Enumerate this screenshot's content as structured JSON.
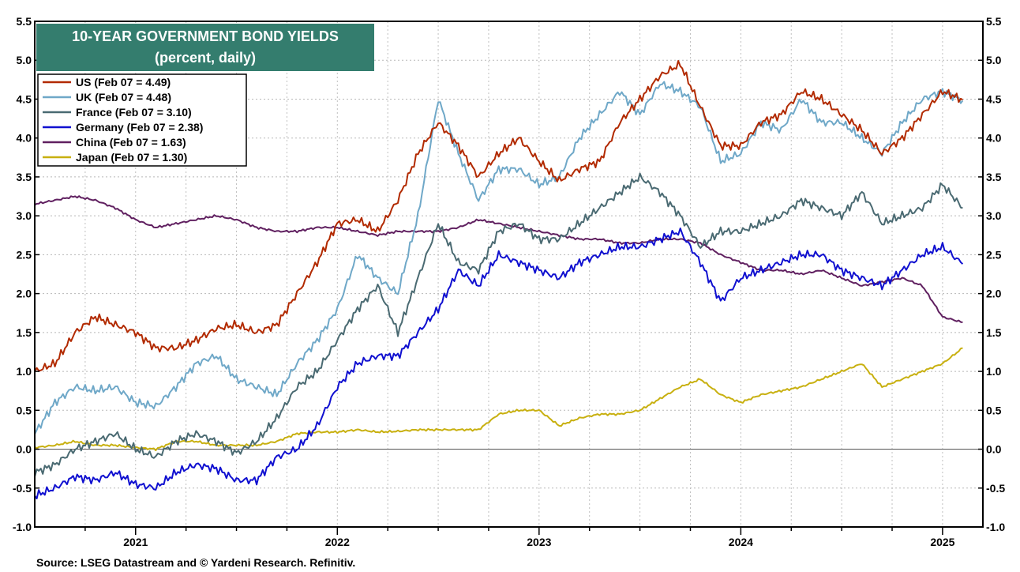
{
  "chart_data": {
    "type": "line",
    "title": "10-YEAR GOVERNMENT BOND YIELDS",
    "subtitle": "(percent, daily)",
    "xlabel": "",
    "ylabel": "",
    "ylim": [
      -1.0,
      5.5
    ],
    "xlim": [
      2020.5,
      2025.2
    ],
    "y_ticks": [
      "5.5",
      "5.0",
      "4.5",
      "4.0",
      "3.5",
      "3.0",
      "2.5",
      "2.0",
      "1.5",
      "1.0",
      "0.5",
      "0.0",
      "-0.5",
      "-1.0"
    ],
    "x_tick_labels": [
      "2021",
      "2022",
      "2023",
      "2024",
      "2025"
    ],
    "grid": true,
    "legend_position": "top-left",
    "source": "Source: LSEG Datastream and © Yardeni Research. Refinitiv.",
    "series": [
      {
        "name": "US",
        "label": "US (Feb 07 = 4.49)",
        "color": "#b22a00",
        "x": [
          2020.5,
          2020.6,
          2020.7,
          2020.8,
          2020.9,
          2021.0,
          2021.1,
          2021.2,
          2021.3,
          2021.4,
          2021.5,
          2021.6,
          2021.7,
          2021.8,
          2021.9,
          2022.0,
          2022.1,
          2022.2,
          2022.3,
          2022.4,
          2022.5,
          2022.6,
          2022.7,
          2022.8,
          2022.9,
          2023.0,
          2023.1,
          2023.2,
          2023.3,
          2023.4,
          2023.5,
          2023.6,
          2023.7,
          2023.8,
          2023.9,
          2024.0,
          2024.1,
          2024.2,
          2024.3,
          2024.4,
          2024.5,
          2024.6,
          2024.7,
          2024.8,
          2024.9,
          2025.0,
          2025.1
        ],
        "values": [
          1.0,
          1.1,
          1.5,
          1.7,
          1.6,
          1.5,
          1.3,
          1.3,
          1.4,
          1.55,
          1.6,
          1.5,
          1.6,
          2.0,
          2.4,
          2.9,
          2.95,
          2.8,
          3.2,
          3.8,
          4.2,
          3.9,
          3.5,
          3.8,
          4.0,
          3.7,
          3.45,
          3.6,
          3.7,
          4.2,
          4.5,
          4.8,
          4.95,
          4.4,
          3.9,
          3.9,
          4.2,
          4.3,
          4.6,
          4.5,
          4.3,
          4.1,
          3.8,
          4.0,
          4.3,
          4.6,
          4.49
        ]
      },
      {
        "name": "UK",
        "label": "UK (Feb 07 = 4.48)",
        "color": "#6fa8c8",
        "x": [
          2020.5,
          2020.6,
          2020.7,
          2020.8,
          2020.9,
          2021.0,
          2021.1,
          2021.2,
          2021.3,
          2021.4,
          2021.5,
          2021.6,
          2021.7,
          2021.8,
          2021.9,
          2022.0,
          2022.1,
          2022.2,
          2022.3,
          2022.4,
          2022.5,
          2022.6,
          2022.7,
          2022.8,
          2022.9,
          2023.0,
          2023.1,
          2023.2,
          2023.3,
          2023.4,
          2023.5,
          2023.6,
          2023.7,
          2023.8,
          2023.9,
          2024.0,
          2024.1,
          2024.2,
          2024.3,
          2024.4,
          2024.5,
          2024.6,
          2024.7,
          2024.8,
          2024.9,
          2025.0,
          2025.1
        ],
        "values": [
          0.2,
          0.6,
          0.8,
          0.75,
          0.8,
          0.6,
          0.55,
          0.8,
          1.1,
          1.2,
          0.9,
          0.8,
          0.7,
          1.1,
          1.4,
          1.8,
          2.5,
          2.2,
          2.0,
          3.0,
          4.5,
          3.8,
          3.2,
          3.6,
          3.6,
          3.4,
          3.5,
          4.0,
          4.3,
          4.6,
          4.3,
          4.7,
          4.6,
          4.4,
          3.7,
          3.8,
          4.2,
          4.1,
          4.5,
          4.2,
          4.2,
          4.0,
          3.8,
          4.2,
          4.5,
          4.6,
          4.48
        ]
      },
      {
        "name": "France",
        "label": "France (Feb 07 = 3.10)",
        "color": "#4a6a72",
        "x": [
          2020.5,
          2020.6,
          2020.7,
          2020.8,
          2020.9,
          2021.0,
          2021.1,
          2021.2,
          2021.3,
          2021.4,
          2021.5,
          2021.6,
          2021.7,
          2021.8,
          2021.9,
          2022.0,
          2022.1,
          2022.2,
          2022.3,
          2022.4,
          2022.5,
          2022.6,
          2022.7,
          2022.8,
          2022.9,
          2023.0,
          2023.1,
          2023.2,
          2023.3,
          2023.4,
          2023.5,
          2023.6,
          2023.7,
          2023.8,
          2023.9,
          2024.0,
          2024.1,
          2024.2,
          2024.3,
          2024.4,
          2024.5,
          2024.6,
          2024.7,
          2024.8,
          2024.9,
          2025.0,
          2025.1
        ],
        "values": [
          -0.3,
          -0.2,
          0.0,
          0.1,
          0.2,
          0.0,
          -0.1,
          0.1,
          0.2,
          0.1,
          -0.05,
          0.1,
          0.4,
          0.8,
          1.0,
          1.4,
          1.8,
          2.1,
          1.5,
          2.2,
          2.9,
          2.4,
          2.3,
          2.8,
          2.9,
          2.7,
          2.7,
          2.9,
          3.1,
          3.3,
          3.5,
          3.3,
          3.0,
          2.6,
          2.8,
          2.8,
          2.9,
          3.0,
          3.2,
          3.1,
          3.0,
          3.3,
          2.9,
          3.0,
          3.1,
          3.4,
          3.1
        ]
      },
      {
        "name": "Germany",
        "label": "Germany (Feb 07 = 2.38)",
        "color": "#1010d0",
        "x": [
          2020.5,
          2020.6,
          2020.7,
          2020.8,
          2020.9,
          2021.0,
          2021.1,
          2021.2,
          2021.3,
          2021.4,
          2021.5,
          2021.6,
          2021.7,
          2021.8,
          2021.9,
          2022.0,
          2022.1,
          2022.2,
          2022.3,
          2022.4,
          2022.5,
          2022.6,
          2022.7,
          2022.8,
          2022.9,
          2023.0,
          2023.1,
          2023.2,
          2023.3,
          2023.4,
          2023.5,
          2023.6,
          2023.7,
          2023.8,
          2023.9,
          2024.0,
          2024.1,
          2024.2,
          2024.3,
          2024.4,
          2024.5,
          2024.6,
          2024.7,
          2024.8,
          2024.9,
          2025.0,
          2025.1
        ],
        "values": [
          -0.6,
          -0.5,
          -0.35,
          -0.4,
          -0.3,
          -0.45,
          -0.5,
          -0.3,
          -0.2,
          -0.25,
          -0.4,
          -0.4,
          -0.1,
          0.0,
          0.3,
          0.8,
          1.1,
          1.2,
          1.2,
          1.5,
          1.8,
          2.3,
          2.1,
          2.5,
          2.4,
          2.3,
          2.2,
          2.4,
          2.5,
          2.6,
          2.6,
          2.7,
          2.8,
          2.4,
          1.9,
          2.2,
          2.3,
          2.4,
          2.5,
          2.5,
          2.3,
          2.2,
          2.1,
          2.3,
          2.5,
          2.6,
          2.38
        ]
      },
      {
        "name": "China",
        "label": "China (Feb 07 = 1.63)",
        "color": "#602060",
        "x": [
          2020.5,
          2020.6,
          2020.7,
          2020.8,
          2020.9,
          2021.0,
          2021.1,
          2021.2,
          2021.3,
          2021.4,
          2021.5,
          2021.6,
          2021.7,
          2021.8,
          2021.9,
          2022.0,
          2022.1,
          2022.2,
          2022.3,
          2022.4,
          2022.5,
          2022.6,
          2022.7,
          2022.8,
          2022.9,
          2023.0,
          2023.1,
          2023.2,
          2023.3,
          2023.4,
          2023.5,
          2023.6,
          2023.7,
          2023.8,
          2023.9,
          2024.0,
          2024.1,
          2024.2,
          2024.3,
          2024.4,
          2024.5,
          2024.6,
          2024.7,
          2024.8,
          2024.9,
          2025.0,
          2025.1
        ],
        "values": [
          3.15,
          3.2,
          3.25,
          3.2,
          3.1,
          2.95,
          2.85,
          2.9,
          2.95,
          3.0,
          2.95,
          2.85,
          2.8,
          2.8,
          2.85,
          2.85,
          2.8,
          2.75,
          2.8,
          2.8,
          2.8,
          2.85,
          2.95,
          2.9,
          2.85,
          2.8,
          2.75,
          2.7,
          2.7,
          2.65,
          2.65,
          2.7,
          2.7,
          2.65,
          2.5,
          2.4,
          2.3,
          2.3,
          2.25,
          2.3,
          2.2,
          2.1,
          2.15,
          2.2,
          2.1,
          1.7,
          1.63
        ]
      },
      {
        "name": "Japan",
        "label": "Japan (Feb 07 = 1.30)",
        "color": "#c8b010",
        "x": [
          2020.5,
          2020.6,
          2020.7,
          2020.8,
          2020.9,
          2021.0,
          2021.1,
          2021.2,
          2021.3,
          2021.4,
          2021.5,
          2021.6,
          2021.7,
          2021.8,
          2021.9,
          2022.0,
          2022.1,
          2022.2,
          2022.3,
          2022.4,
          2022.5,
          2022.6,
          2022.7,
          2022.8,
          2022.9,
          2023.0,
          2023.1,
          2023.2,
          2023.3,
          2023.4,
          2023.5,
          2023.6,
          2023.7,
          2023.8,
          2023.9,
          2024.0,
          2024.1,
          2024.2,
          2024.3,
          2024.4,
          2024.5,
          2024.6,
          2024.7,
          2024.8,
          2024.9,
          2025.0,
          2025.1
        ],
        "values": [
          0.02,
          0.05,
          0.1,
          0.05,
          0.05,
          0.02,
          0.0,
          0.1,
          0.1,
          0.05,
          0.05,
          0.05,
          0.1,
          0.2,
          0.22,
          0.22,
          0.25,
          0.22,
          0.23,
          0.25,
          0.25,
          0.25,
          0.25,
          0.45,
          0.5,
          0.5,
          0.3,
          0.4,
          0.45,
          0.45,
          0.5,
          0.65,
          0.8,
          0.9,
          0.7,
          0.6,
          0.7,
          0.75,
          0.8,
          0.9,
          1.0,
          1.1,
          0.8,
          0.9,
          1.0,
          1.1,
          1.3
        ]
      }
    ]
  }
}
